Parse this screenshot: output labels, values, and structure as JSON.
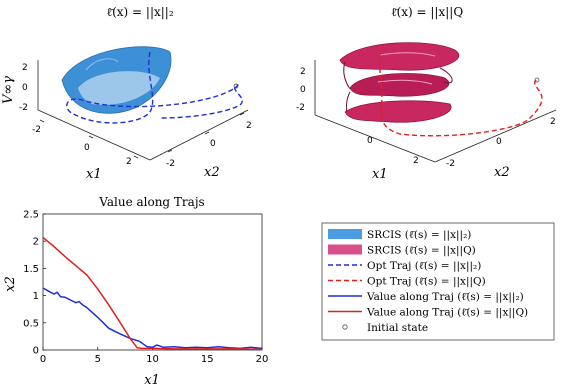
{
  "chart_data": [
    {
      "type": "surface3d",
      "title": "ℓ̄(x) = ||x||₂",
      "zlabel": "V∞γ",
      "xlabel": "x1",
      "ylabel": "x2",
      "xticks": [
        "-2",
        "0",
        "2"
      ],
      "yticks": [
        "-2",
        "0",
        "2"
      ],
      "zticks": [
        "2",
        "0",
        "-2"
      ],
      "series": [
        {
          "name": "SRCIS (ℓ̄(s) = ||x||₂)",
          "color": "#3d8fd6"
        },
        {
          "name": "Opt Traj (ℓ̄(s) = ||x||₂)",
          "color": "#1f2ed8"
        }
      ]
    },
    {
      "type": "surface3d",
      "title": "ℓ̄(x) = ||x||Q",
      "xlabel": "x1",
      "ylabel": "x2",
      "xticks": [
        "-2",
        "0",
        "2"
      ],
      "yticks": [
        "-2",
        "0",
        "2"
      ],
      "zticks": [
        "2",
        "0",
        "-2"
      ],
      "series": [
        {
          "name": "SRCIS (ℓ̄(s) = ||x||Q)",
          "color": "#c8285f"
        },
        {
          "name": "Opt Traj (ℓ̄(s) = ||x||Q)",
          "color": "#e02020"
        }
      ]
    },
    {
      "type": "line",
      "title": "Value along Trajs",
      "xlabel": "x1",
      "ylabel": "x2",
      "xlim": [
        0,
        20
      ],
      "ylim": [
        0,
        2.5
      ],
      "xticks": [
        0,
        5,
        10,
        15,
        20
      ],
      "yticks": [
        0,
        0.5,
        1,
        1.5,
        2,
        2.5
      ],
      "series": [
        {
          "name": "Value along Traj (ℓ̄(s) = ||x||₂)",
          "color": "#1f2ed8",
          "x": [
            0,
            0.5,
            1,
            1.3,
            1.6,
            2,
            2.5,
            3,
            3.3,
            3.6,
            4,
            5,
            6,
            7,
            8,
            8.8,
            9.5,
            10,
            10.4,
            11,
            12,
            13,
            14,
            15,
            16,
            17,
            18,
            19,
            20
          ],
          "y": [
            1.14,
            1.08,
            1.03,
            1.06,
            0.98,
            0.97,
            0.92,
            0.87,
            0.89,
            0.83,
            0.78,
            0.6,
            0.4,
            0.3,
            0.21,
            0.16,
            0.06,
            0.05,
            0.09,
            0.05,
            0.06,
            0.04,
            0.05,
            0.04,
            0.06,
            0.04,
            0.03,
            0.05,
            0.03
          ]
        },
        {
          "name": "Value along Traj (ℓ̄(s) = ||x||Q)",
          "color": "#e02020",
          "x": [
            0,
            1,
            2,
            3,
            4,
            5,
            6,
            7,
            8,
            8.6,
            9,
            10,
            12,
            14,
            16,
            18,
            20
          ],
          "y": [
            2.07,
            1.9,
            1.72,
            1.55,
            1.38,
            1.12,
            0.83,
            0.52,
            0.2,
            0.04,
            0.03,
            0.03,
            0.02,
            0.02,
            0.02,
            0.02,
            0.01
          ]
        }
      ]
    }
  ],
  "legend": {
    "items": [
      {
        "label": "SRCIS (ℓ̄(s) = ||x||₂)",
        "kind": "patch",
        "color": "#4a9de0"
      },
      {
        "label": "SRCIS (ℓ̄(s) = ||x||Q)",
        "kind": "patch",
        "color": "#d8508a"
      },
      {
        "label": "Opt Traj (ℓ̄(s) = ||x||₂)",
        "kind": "dashed",
        "color": "#1f2ed8"
      },
      {
        "label": "Opt Traj (ℓ̄(s) = ||x||Q)",
        "kind": "dashed",
        "color": "#e02020"
      },
      {
        "label": "Value along Traj (ℓ̄(s) = ||x||₂)",
        "kind": "solid",
        "color": "#1f2ed8"
      },
      {
        "label": "Value along Traj (ℓ̄(s) = ||x||Q)",
        "kind": "solid",
        "color": "#e02020"
      },
      {
        "label": "Initial state",
        "kind": "marker",
        "color": "#555555"
      }
    ]
  }
}
